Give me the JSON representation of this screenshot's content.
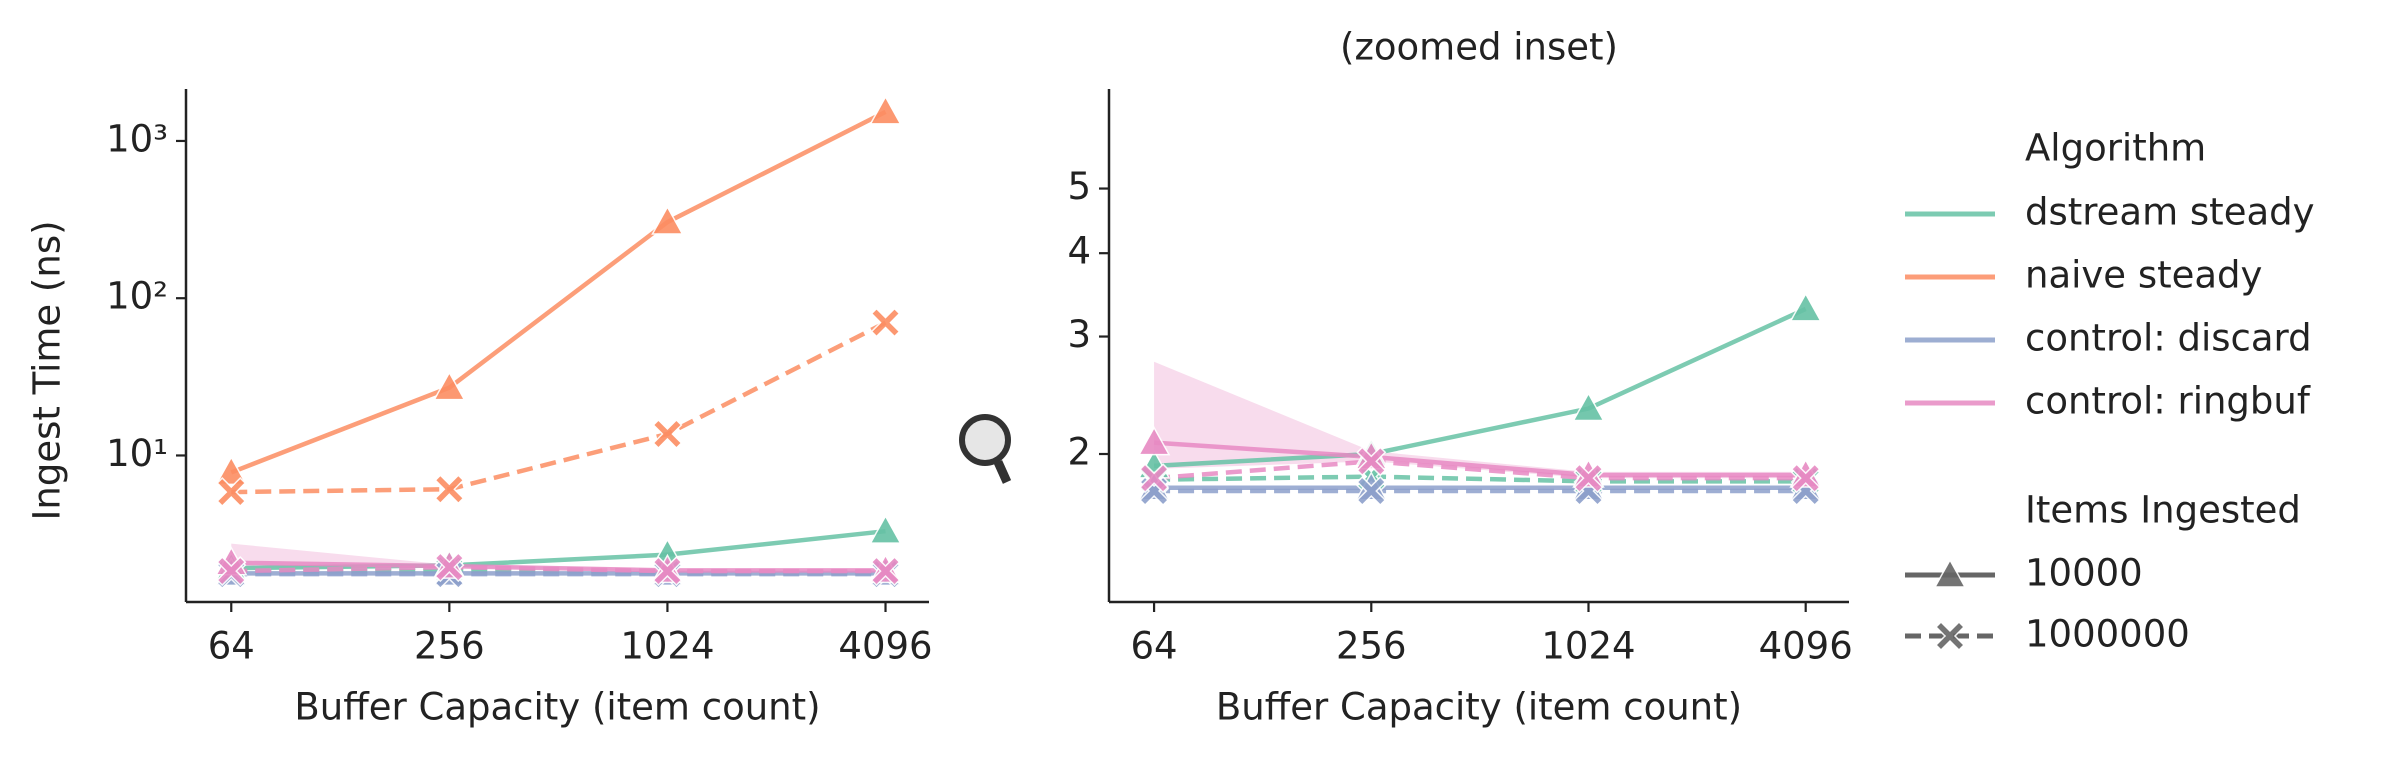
{
  "chart_data": [
    {
      "type": "line",
      "ylabel": "Ingest Time (ns)",
      "xlabel": "Buffer Capacity (item count)",
      "log_x": true,
      "log_y": true,
      "xlim": [
        48,
        5400
      ],
      "ylim": [
        1.17,
        2140
      ],
      "x": [
        64,
        256,
        1024,
        4096
      ],
      "xticks": [
        64,
        256,
        1024,
        4096
      ],
      "yticks": [
        {
          "value": 10,
          "label": "10¹"
        },
        {
          "value": 100,
          "label": "10²"
        },
        {
          "value": 1000,
          "label": "10³"
        }
      ],
      "series": [
        {
          "algorithm": 0,
          "items": 0,
          "values": [
            1.92,
            2.0,
            2.34,
            3.3
          ]
        },
        {
          "algorithm": 0,
          "items": 1,
          "values": [
            1.83,
            1.85,
            1.82,
            1.82
          ]
        },
        {
          "algorithm": 1,
          "items": 0,
          "values": [
            7.8,
            27,
            305,
            1530
          ]
        },
        {
          "algorithm": 1,
          "items": 1,
          "values": [
            5.85,
            6.1,
            13.7,
            70
          ]
        },
        {
          "algorithm": 2,
          "items": 0,
          "values": [
            1.78,
            1.78,
            1.78,
            1.78
          ]
        },
        {
          "algorithm": 2,
          "items": 1,
          "values": [
            1.76,
            1.76,
            1.76,
            1.76
          ]
        },
        {
          "algorithm": 3,
          "items": 0,
          "values": [
            2.08,
            1.98,
            1.86,
            1.86
          ],
          "ci_low": [
            1.9,
            1.95,
            1.84,
            1.84
          ],
          "ci_high": [
            2.75,
            2.02,
            1.88,
            1.88
          ]
        },
        {
          "algorithm": 3,
          "items": 1,
          "values": [
            1.84,
            1.95,
            1.84,
            1.84
          ]
        }
      ]
    },
    {
      "type": "line",
      "title": "(zoomed inset)",
      "xlabel": "Buffer Capacity (item count)",
      "log_x": true,
      "log_y": true,
      "xlim": [
        48,
        5400
      ],
      "ylim": [
        1.2,
        7.05
      ],
      "x": [
        64,
        256,
        1024,
        4096
      ],
      "xticks": [
        64,
        256,
        1024,
        4096
      ],
      "yticks": [
        2,
        3,
        4,
        5
      ],
      "series": [
        {
          "algorithm": 0,
          "items": 0,
          "values": [
            1.92,
            2.0,
            2.34,
            3.3
          ]
        },
        {
          "algorithm": 0,
          "items": 1,
          "values": [
            1.83,
            1.85,
            1.82,
            1.82
          ]
        },
        {
          "algorithm": 2,
          "items": 0,
          "values": [
            1.78,
            1.78,
            1.78,
            1.78
          ]
        },
        {
          "algorithm": 2,
          "items": 1,
          "values": [
            1.76,
            1.76,
            1.76,
            1.76
          ]
        },
        {
          "algorithm": 3,
          "items": 0,
          "values": [
            2.08,
            1.98,
            1.86,
            1.86
          ],
          "ci_low": [
            1.9,
            1.95,
            1.84,
            1.84
          ],
          "ci_high": [
            2.75,
            2.02,
            1.88,
            1.88
          ]
        },
        {
          "algorithm": 3,
          "items": 1,
          "values": [
            1.84,
            1.95,
            1.84,
            1.84
          ]
        }
      ]
    }
  ],
  "legend": {
    "hue_title": "Algorithm",
    "hue": [
      {
        "name": "dstream steady",
        "color": "#66c2a5"
      },
      {
        "name": "naive steady",
        "color": "#fc8d62"
      },
      {
        "name": "control: discard",
        "color": "#8da0cb"
      },
      {
        "name": "control: ringbuf",
        "color": "#e78ac3"
      }
    ],
    "style_title": "Items Ingested",
    "style": [
      {
        "name": "10000",
        "marker": "triangle",
        "dashed": false
      },
      {
        "name": "1000000",
        "marker": "x",
        "dashed": true
      }
    ]
  }
}
